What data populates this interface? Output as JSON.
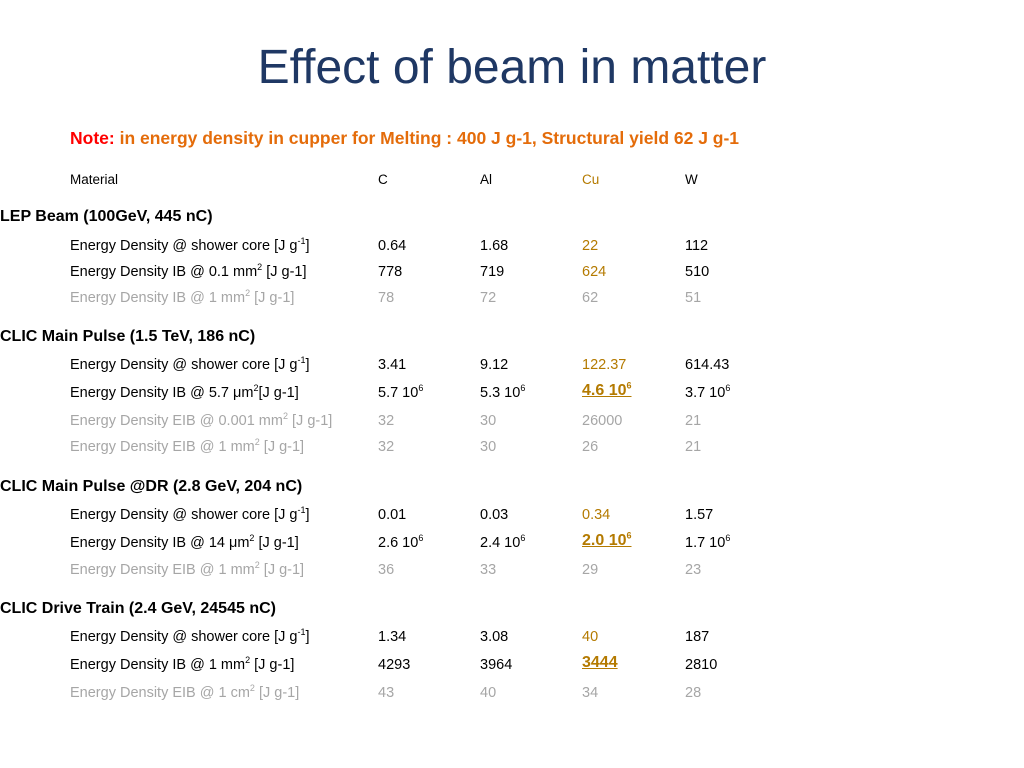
{
  "slide": {
    "title": "Effect of beam in matter",
    "note": {
      "label": "Note:",
      "text": " in energy density in cupper for Melting : 400 J g-1,  Structural yield 62 J g-1"
    },
    "columns": [
      "Material",
      "C",
      "Al",
      "Cu",
      "W"
    ],
    "sections": [
      {
        "title": "LEP Beam (100GeV, 445 nC)",
        "rows": [
          {
            "label": "Energy Density @ shower core [J g",
            "sup": "-1",
            "suffix": "]",
            "gray": false,
            "values": [
              "0.64",
              "1.68",
              "22",
              "112"
            ],
            "exps": [
              "",
              "",
              "",
              ""
            ],
            "cu_highlight": false
          },
          {
            "label": "Energy Density IB @ 0.1 mm",
            "sup": "2",
            "suffix": " [J g-1]",
            "gray": false,
            "values": [
              "778",
              "719",
              "624",
              "510"
            ],
            "exps": [
              "",
              "",
              "",
              ""
            ],
            "cu_highlight": false
          },
          {
            "label": "Energy Density IB @ 1 mm",
            "sup": "2",
            "suffix": " [J g-1]",
            "gray": true,
            "values": [
              "78",
              "72",
              "62",
              "51"
            ],
            "exps": [
              "",
              "",
              "",
              ""
            ],
            "cu_highlight": false
          }
        ]
      },
      {
        "title": "CLIC Main Pulse (1.5 TeV, 186 nC)",
        "rows": [
          {
            "label": "Energy Density @ shower core [J g",
            "sup": "-1",
            "suffix": "]",
            "gray": false,
            "values": [
              "3.41",
              "9.12",
              "122.37",
              "614.43"
            ],
            "exps": [
              "",
              "",
              "",
              ""
            ],
            "cu_highlight": false
          },
          {
            "label": "Energy Density IB @ 5.7 μm",
            "sup": "2",
            "suffix": "[J g-1]",
            "gray": false,
            "values": [
              "5.7 10",
              "5.3 10",
              "4.6 10",
              "3.7 10"
            ],
            "exps": [
              "6",
              "6",
              "6",
              "6"
            ],
            "cu_highlight": true
          },
          {
            "label": "Energy Density EIB @ 0.001 mm",
            "sup": "2",
            "suffix": " [J g-1]",
            "gray": true,
            "values": [
              "32",
              "30",
              "26000",
              "21"
            ],
            "exps": [
              "",
              "",
              "",
              ""
            ],
            "cu_highlight": false
          },
          {
            "label": "Energy Density EIB @ 1 mm",
            "sup": "2",
            "suffix": " [J g-1]",
            "gray": true,
            "values": [
              "32",
              "30",
              "26",
              "21"
            ],
            "exps": [
              "",
              "",
              "",
              ""
            ],
            "cu_highlight": false
          }
        ]
      },
      {
        "title": "CLIC Main Pulse @DR (2.8 GeV, 204 nC)",
        "rows": [
          {
            "label": "Energy Density @ shower core [J g",
            "sup": "-1",
            "suffix": "]",
            "gray": false,
            "values": [
              "0.01",
              "0.03",
              "0.34",
              "1.57"
            ],
            "exps": [
              "",
              "",
              "",
              ""
            ],
            "cu_highlight": false
          },
          {
            "label": "Energy Density IB @ 14 μm",
            "sup": "2",
            "suffix": " [J g-1]",
            "gray": false,
            "values": [
              "2.6 10",
              "2.4 10",
              "2.0 10",
              "1.7 10"
            ],
            "exps": [
              "6",
              "6",
              "6",
              "6"
            ],
            "cu_highlight": true
          },
          {
            "label": "Energy Density EIB @ 1 mm",
            "sup": "2",
            "suffix": " [J g-1]",
            "gray": true,
            "values": [
              "36",
              "33",
              "29",
              "23"
            ],
            "exps": [
              "",
              "",
              "",
              ""
            ],
            "cu_highlight": false
          }
        ]
      },
      {
        "title": "CLIC Drive Train (2.4 GeV, 24545 nC)",
        "rows": [
          {
            "label": "Energy Density @ shower core [J g",
            "sup": "-1",
            "suffix": "]",
            "gray": false,
            "values": [
              "1.34",
              "3.08",
              "40",
              "187"
            ],
            "exps": [
              "",
              "",
              "",
              ""
            ],
            "cu_highlight": false
          },
          {
            "label": "Energy Density IB @ 1 mm",
            "sup": "2",
            "suffix": " [J g-1]",
            "gray": false,
            "values": [
              "4293",
              "3964",
              "3444",
              "2810"
            ],
            "exps": [
              "",
              "",
              "",
              ""
            ],
            "cu_highlight": true
          },
          {
            "label": "Energy Density EIB @ 1 cm",
            "sup": "2",
            "suffix": " [J g-1]",
            "gray": true,
            "values": [
              "43",
              "40",
              "34",
              "28"
            ],
            "exps": [
              "",
              "",
              "",
              ""
            ],
            "cu_highlight": false
          }
        ]
      }
    ]
  }
}
